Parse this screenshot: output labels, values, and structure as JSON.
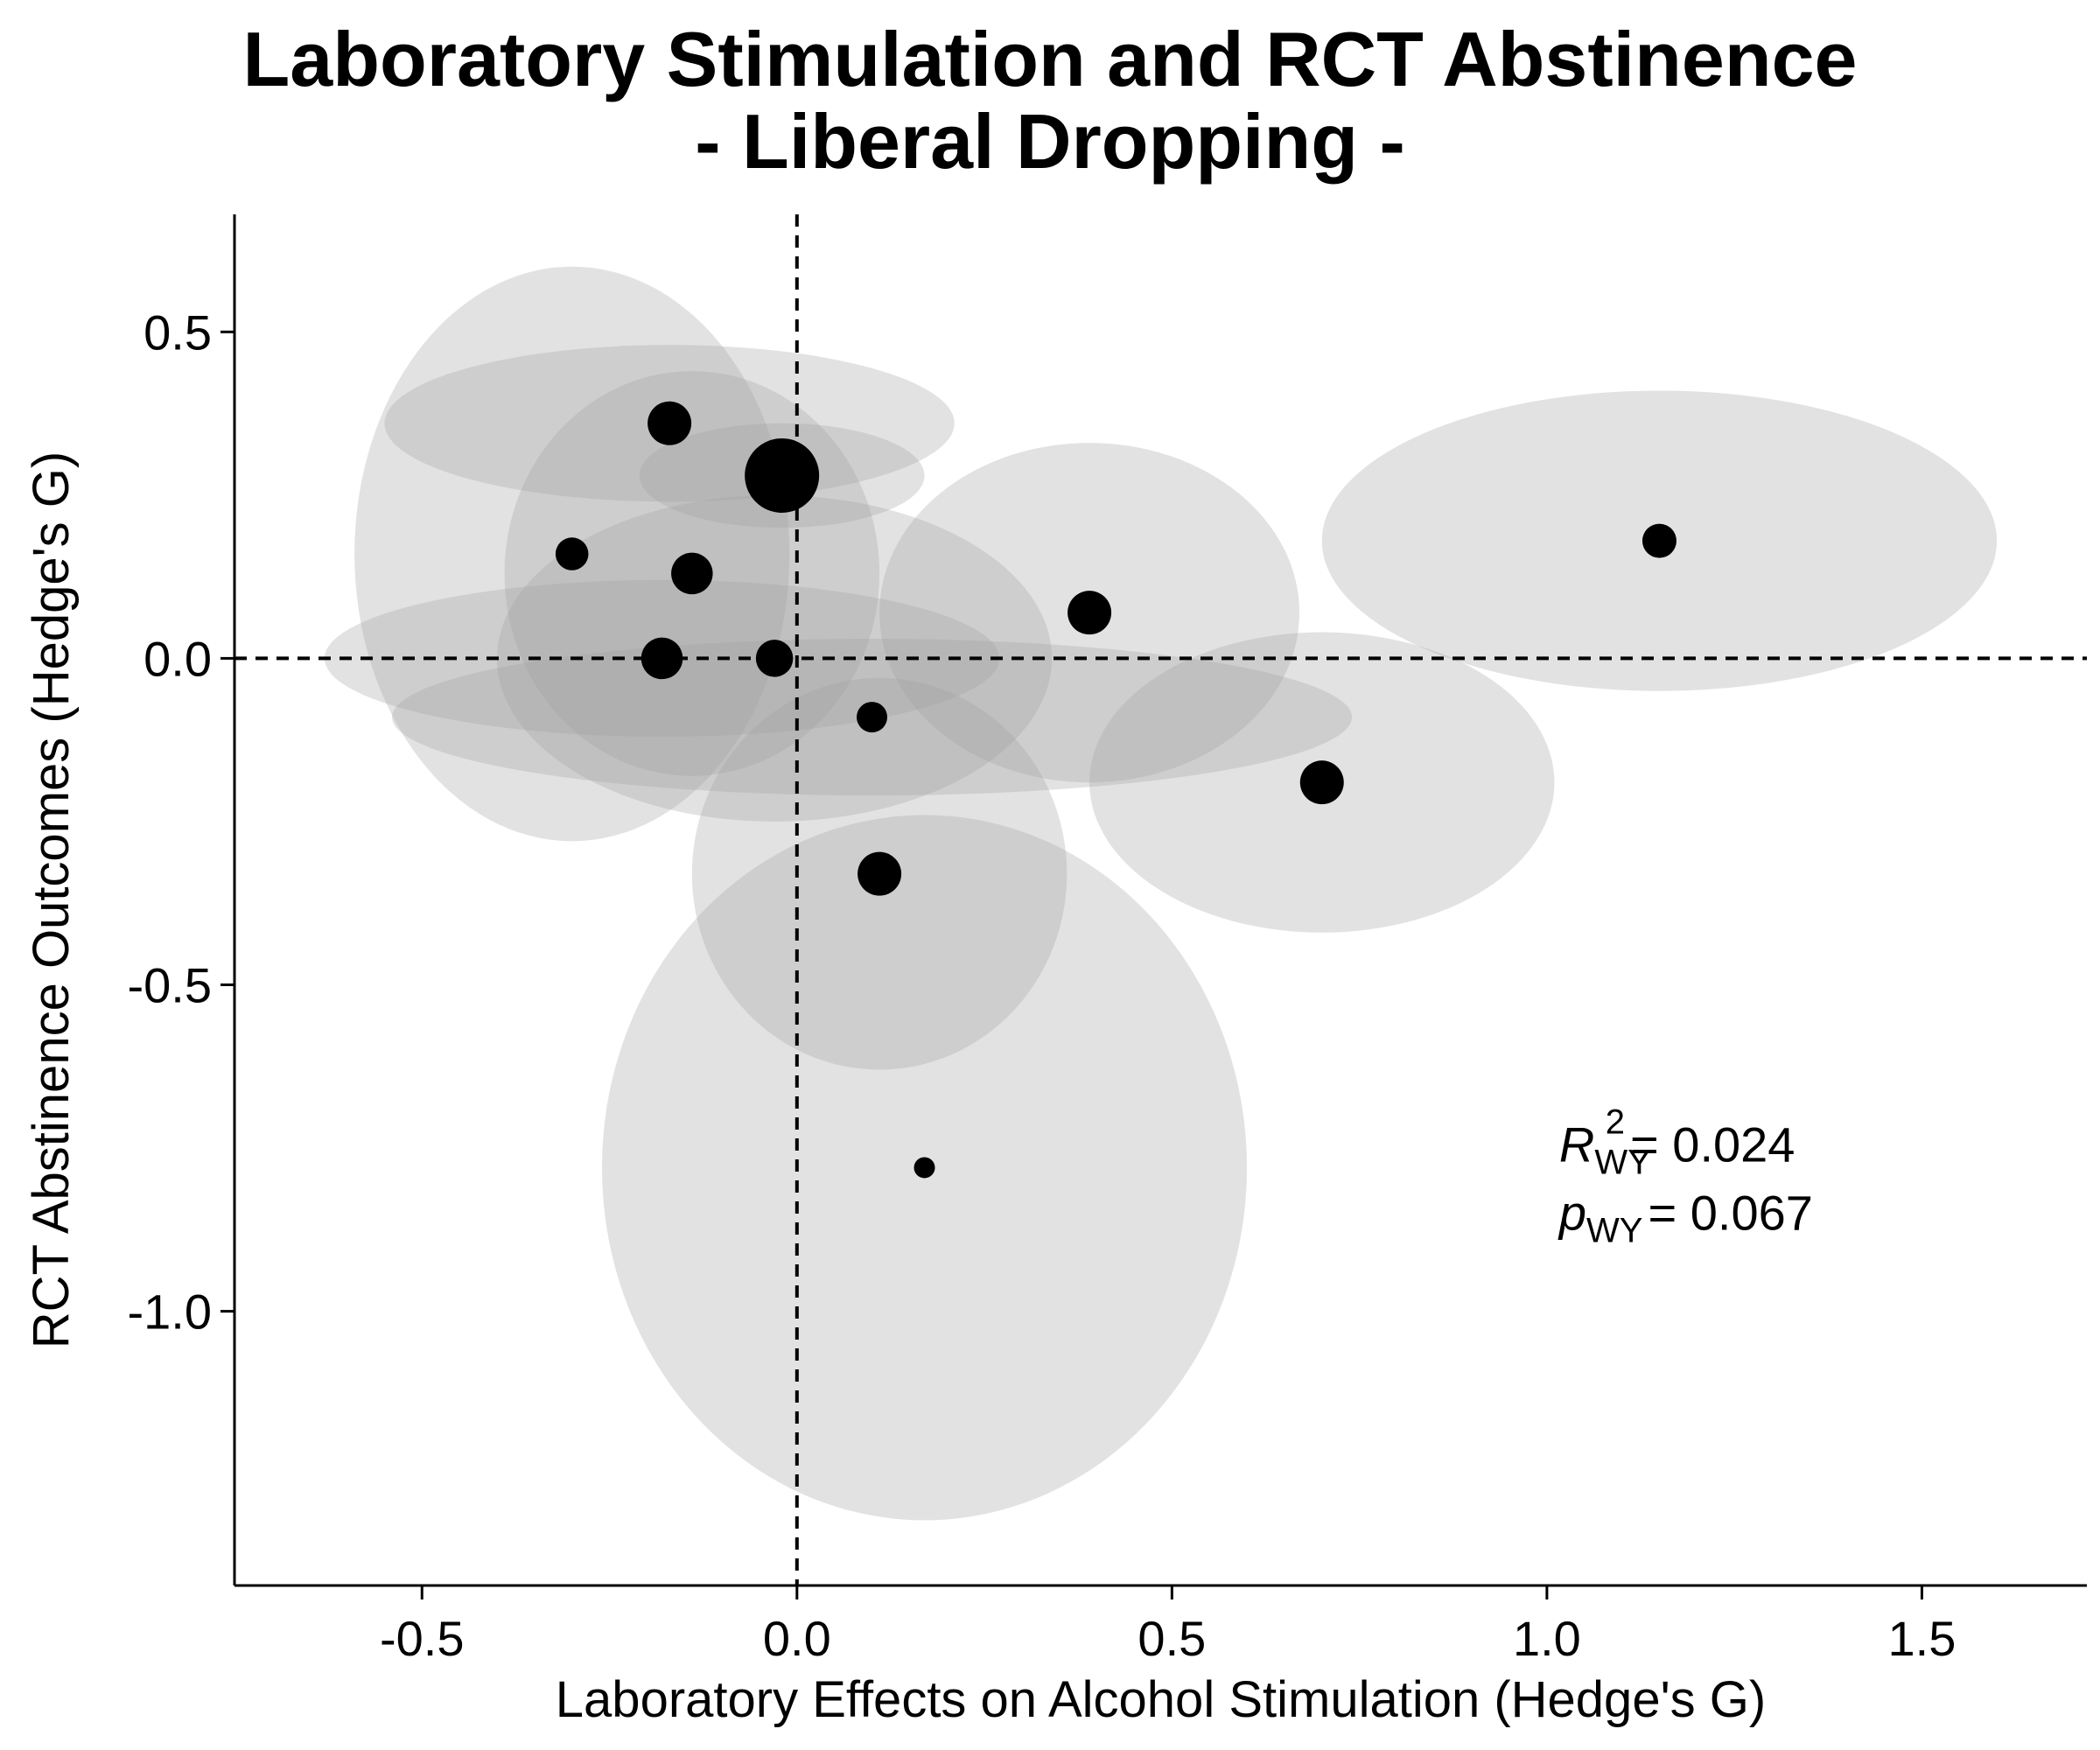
{
  "chart_data": {
    "type": "scatter",
    "title": [
      "Laboratory Stimulation and RCT Abstinence",
      "- Liberal Dropping -"
    ],
    "xlabel": "Laboratory Effects on Alcohol Stimulation (Hedge's G)",
    "ylabel": "RCT Abstinence Outcomes (Hedge's G)",
    "xlim": [
      -0.75,
      1.72
    ],
    "ylim": [
      -1.42,
      0.68
    ],
    "x_ticks": [
      -0.5,
      0.0,
      0.5,
      1.0,
      1.5
    ],
    "y_ticks": [
      0.5,
      0.0,
      -0.5,
      -1.0
    ],
    "x_tick_labels": [
      "-0.5",
      "0.0",
      "0.5",
      "1.0",
      "1.5"
    ],
    "y_tick_labels": [
      "0.5",
      "0.0",
      "-0.5",
      "-1.0"
    ],
    "reference_lines": {
      "x": 0.0,
      "y": 0.0,
      "style": "dashed"
    },
    "grid": false,
    "ellipse_color": "#9e9e9e",
    "point_color": "#000000",
    "points": [
      {
        "x": -0.17,
        "y": 0.36,
        "sx": 0.38,
        "sy": 0.12,
        "size": 1.0
      },
      {
        "x": -0.02,
        "y": 0.28,
        "sx": 0.19,
        "sy": 0.08,
        "size": 1.7
      },
      {
        "x": -0.3,
        "y": 0.16,
        "sx": 0.29,
        "sy": 0.44,
        "size": 0.75
      },
      {
        "x": -0.14,
        "y": 0.13,
        "sx": 0.25,
        "sy": 0.31,
        "size": 0.95
      },
      {
        "x": -0.18,
        "y": 0.0,
        "sx": 0.45,
        "sy": 0.12,
        "size": 0.95
      },
      {
        "x": -0.03,
        "y": 0.0,
        "sx": 0.37,
        "sy": 0.25,
        "size": 0.85
      },
      {
        "x": 0.39,
        "y": 0.07,
        "sx": 0.28,
        "sy": 0.26,
        "size": 1.0
      },
      {
        "x": 0.1,
        "y": -0.09,
        "sx": 0.64,
        "sy": 0.12,
        "size": 0.7
      },
      {
        "x": 0.11,
        "y": -0.33,
        "sx": 0.25,
        "sy": 0.3,
        "size": 1.0
      },
      {
        "x": 0.7,
        "y": -0.19,
        "sx": 0.31,
        "sy": 0.23,
        "size": 1.0
      },
      {
        "x": 1.15,
        "y": 0.18,
        "sx": 0.45,
        "sy": 0.23,
        "size": 0.78
      },
      {
        "x": 0.17,
        "y": -0.78,
        "sx": 0.43,
        "sy": 0.54,
        "size": 0.48
      }
    ],
    "annotation": {
      "r2_symbol": "R",
      "r2_sub": "WY",
      "r2_sup": "2",
      "r2_value": "= 0.024",
      "p_symbol": "p",
      "p_sub": "WY",
      "p_value": "= 0.067",
      "anchor_x": 1.0,
      "anchor_y": -0.8
    }
  }
}
